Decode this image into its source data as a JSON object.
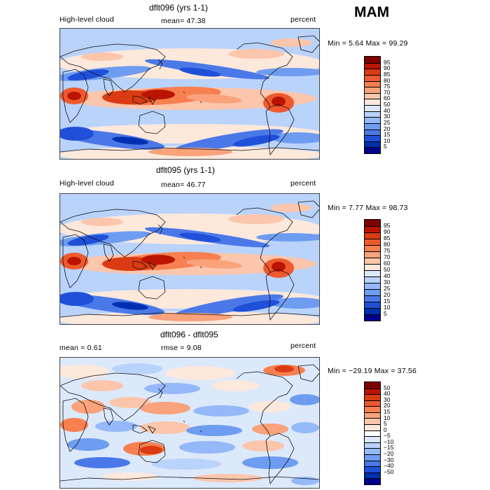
{
  "season": "MAM",
  "panels": [
    {
      "title": "dflt096 (yrs 1-1)",
      "left_label": "High-level cloud",
      "mean_text": "mean=   47.38",
      "units": "percent",
      "minmax_text": "Min =    5.64 Max =   99.29",
      "kind": "abs"
    },
    {
      "title": "dflt095 (yrs 1-1)",
      "left_label": "High-level cloud",
      "mean_text": "mean=   46.77",
      "units": "percent",
      "minmax_text": "Min =    7.77 Max =   98.73",
      "kind": "abs"
    },
    {
      "title": "dflt096 - dflt095",
      "left_label": "mean =     0.61",
      "mean_text": "rmse =    9.08",
      "units": "percent",
      "minmax_text": "Min = −29.19 Max =   37.56",
      "kind": "diff"
    }
  ],
  "chart_data": [
    {
      "type": "heatmap",
      "title": "dflt096 (yrs 1-1)",
      "field": "High-level cloud",
      "units": "percent",
      "mean": 47.38,
      "min": 5.64,
      "max": 99.29,
      "colorbar_levels": [
        "95",
        "90",
        "85",
        "80",
        "75",
        "70",
        "60",
        "50",
        "40",
        "30",
        "25",
        "20",
        "15",
        "10",
        "5"
      ]
    },
    {
      "type": "heatmap",
      "title": "dflt095 (yrs 1-1)",
      "field": "High-level cloud",
      "units": "percent",
      "mean": 46.77,
      "min": 7.77,
      "max": 98.73,
      "colorbar_levels": [
        "95",
        "90",
        "85",
        "80",
        "75",
        "70",
        "60",
        "50",
        "40",
        "30",
        "25",
        "20",
        "15",
        "10",
        "5"
      ]
    },
    {
      "type": "heatmap",
      "title": "dflt096 - dflt095",
      "units": "percent",
      "mean": 0.61,
      "rmse": 9.08,
      "min": -29.19,
      "max": 37.56,
      "colorbar_levels": [
        "50",
        "40",
        "30",
        "20",
        "15",
        "10",
        "5",
        "0",
        "−5",
        "−10",
        "−15",
        "−20",
        "−30",
        "−40",
        "−50"
      ]
    }
  ],
  "colors": {
    "abs_scale": [
      "#7e0000",
      "#bb1400",
      "#db3b12",
      "#ee5a2f",
      "#f77f50",
      "#f9a27b",
      "#fbc6ab",
      "#fde8dc",
      "#dce9fb",
      "#b9d3fb",
      "#94b8f8",
      "#6e9cf0",
      "#4b78e8",
      "#2050d8",
      "#0030b0",
      "#00008e"
    ],
    "diff_scale": [
      "#7e0000",
      "#bb1400",
      "#db3b12",
      "#ee5a2f",
      "#f77f50",
      "#f9a27b",
      "#fbc6ab",
      "#fde8dc",
      "#ffffff",
      "#dce9fb",
      "#b9d3fb",
      "#94b8f8",
      "#6e9cf0",
      "#4b78e8",
      "#2050d8",
      "#0030b0",
      "#00008e"
    ]
  }
}
